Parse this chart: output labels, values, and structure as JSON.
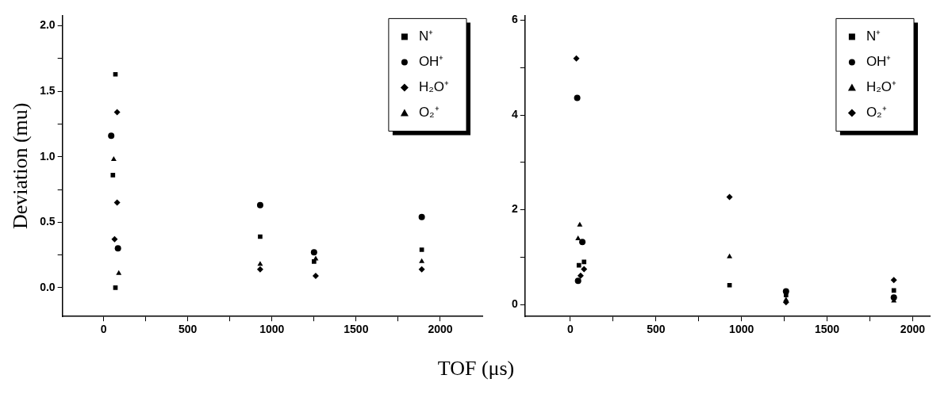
{
  "chart_data": [
    {
      "type": "scatter",
      "xlabel": "TOF (μs)",
      "ylabel": "Deviation (mu)",
      "xlim": [
        -245,
        2250
      ],
      "ylim": [
        -0.22,
        2.08
      ],
      "xticks": [
        0,
        {
          "value": 250,
          "label": null
        },
        500,
        {
          "value": 750,
          "label": null
        },
        1000,
        {
          "value": 1250,
          "label": null
        },
        1500,
        {
          "value": 1750,
          "label": null
        },
        2000
      ],
      "yticks": [
        {
          "value": 0,
          "label": "0.0"
        },
        {
          "value": 0.25,
          "label": null
        },
        {
          "value": 0.5,
          "label": "0.5"
        },
        {
          "value": 0.75,
          "label": null
        },
        {
          "value": 1,
          "label": "1.0"
        },
        {
          "value": 1.25,
          "label": null
        },
        {
          "value": 1.5,
          "label": "1.5"
        },
        {
          "value": 1.75,
          "label": null
        },
        {
          "value": 2,
          "label": "2.0"
        }
      ],
      "grid": false,
      "legend": "top right",
      "series": [
        {
          "name": "N⁺",
          "color": "#000000",
          "marker": "square",
          "x": [
            70,
            55,
            70,
            930,
            1250,
            1890
          ],
          "values": [
            1.63,
            0.86,
            0,
            0.39,
            0.2,
            0.29
          ]
        },
        {
          "name": "OH⁺",
          "color": "#000000",
          "marker": "circle",
          "x": [
            45,
            85,
            930,
            1250,
            1890
          ],
          "values": [
            1.16,
            0.3,
            0.63,
            0.27,
            0.54
          ]
        },
        {
          "name": "H₂O⁺",
          "color": "#000000",
          "marker": "diamond",
          "x": [
            80,
            80,
            65,
            930,
            1260,
            1890
          ],
          "values": [
            1.34,
            0.65,
            0.37,
            0.14,
            0.09,
            0.14
          ]
        },
        {
          "name": "O₂⁺",
          "color": "#000000",
          "marker": "triangle",
          "x": [
            60,
            90,
            930,
            1260,
            1890
          ],
          "values": [
            0.98,
            0.11,
            0.18,
            0.22,
            0.2
          ]
        }
      ]
    },
    {
      "type": "scatter",
      "xlim": [
        -265,
        2100
      ],
      "ylim": [
        -0.25,
        6.1
      ],
      "xticks": [
        0,
        {
          "value": 250,
          "label": null
        },
        500,
        {
          "value": 750,
          "label": null
        },
        1000,
        {
          "value": 1250,
          "label": null
        },
        1500,
        {
          "value": 1750,
          "label": null
        },
        2000
      ],
      "yticks": [
        0,
        {
          "value": 1,
          "label": null
        },
        2,
        {
          "value": 3,
          "label": null
        },
        4,
        {
          "value": 5,
          "label": null
        },
        6
      ],
      "grid": false,
      "legend": "top right",
      "series": [
        {
          "name": "N⁺",
          "color": "#000000",
          "marker": "square",
          "x": [
            50,
            80,
            930,
            1260,
            1890
          ],
          "values": [
            0.83,
            0.9,
            0.41,
            0.2,
            0.3
          ]
        },
        {
          "name": "OH⁺",
          "color": "#000000",
          "marker": "circle",
          "x": [
            40,
            70,
            45,
            1260,
            1890
          ],
          "values": [
            4.36,
            1.32,
            0.5,
            0.28,
            0.15
          ]
        },
        {
          "name": "H₂O⁺",
          "color": "#000000",
          "marker": "triangle",
          "x": [
            55,
            45,
            930,
            1260,
            1890
          ],
          "values": [
            1.68,
            1.39,
            1.01,
            0.1,
            0.08
          ]
        },
        {
          "name": "O₂⁺",
          "color": "#000000",
          "marker": "diamond",
          "x": [
            35,
            80,
            60,
            930,
            1260,
            1890
          ],
          "values": [
            5.19,
            0.75,
            0.61,
            2.27,
            0.05,
            0.52
          ]
        }
      ]
    }
  ]
}
